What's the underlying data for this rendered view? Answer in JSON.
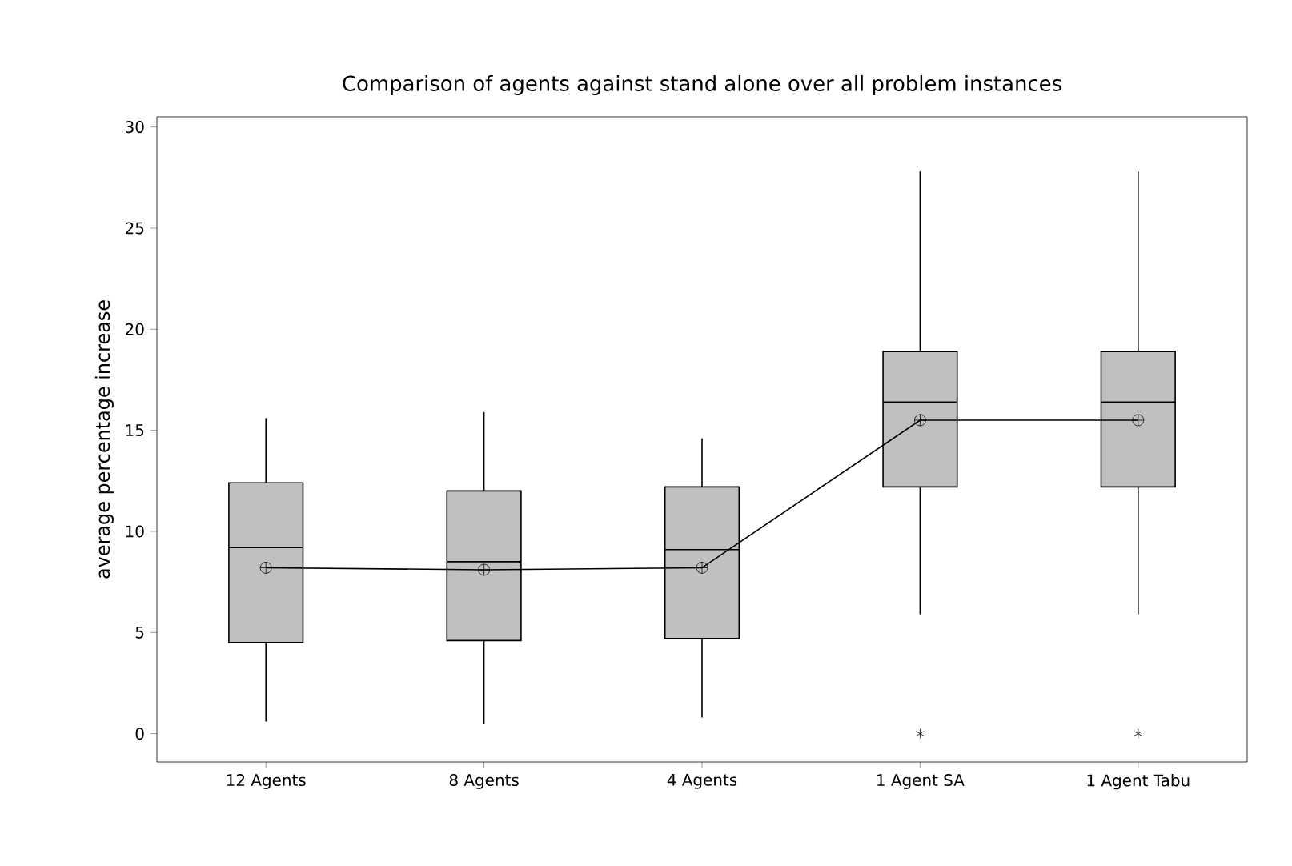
{
  "chart_data": {
    "type": "box",
    "title": "Comparison of agents against stand alone over all problem instances",
    "ylabel": "average percentage increase",
    "categories": [
      "12 Agents",
      "8 Agents",
      "4 Agents",
      "1 Agent SA",
      "1 Agent Tabu"
    ],
    "ylim": [
      -1.4,
      30.5
    ],
    "yticks": [
      0,
      5,
      10,
      15,
      20,
      25,
      30
    ],
    "series": [
      {
        "color": "#c0c0c0",
        "boxes": [
          {
            "low": 0.6,
            "q1": 4.5,
            "median": 9.2,
            "q3": 12.4,
            "high": 15.6,
            "mean": 8.2
          },
          {
            "low": 0.5,
            "q1": 4.6,
            "median": 8.5,
            "q3": 12.0,
            "high": 15.9,
            "mean": 8.1
          },
          {
            "low": 0.8,
            "q1": 4.7,
            "median": 9.1,
            "q3": 12.2,
            "high": 14.6,
            "mean": 8.2
          },
          {
            "low": 5.9,
            "q1": 12.2,
            "median": 16.4,
            "q3": 18.9,
            "high": 27.8,
            "mean": 15.5,
            "outliers": [
              0
            ]
          },
          {
            "low": 5.9,
            "q1": 12.2,
            "median": 16.4,
            "q3": 18.9,
            "high": 27.8,
            "mean": 15.5,
            "outliers": [
              0
            ]
          }
        ]
      },
      {
        "type": "line",
        "color": "#000000",
        "values": [
          8.2,
          8.1,
          8.2,
          15.5,
          15.5
        ]
      }
    ]
  }
}
